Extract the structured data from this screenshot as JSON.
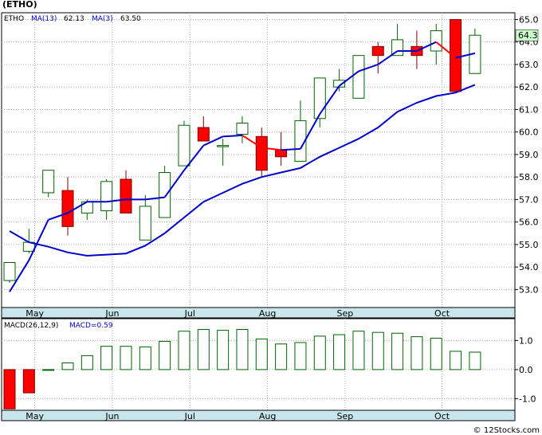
{
  "page_title": "(ETHO)",
  "watermark": "© 12Stocks.com",
  "colors": {
    "background": "#ffffff",
    "grid": "#a8a8a8",
    "axis_strip": "#c8e6ec",
    "up_candle": "#006400",
    "down_candle": "#ff0000",
    "ma_fast": "#ff0000",
    "ma_fast_alt": "#0000cc",
    "ma_slow": "#0000cc",
    "macd_bar": "#006400",
    "macd_neg": "#ff0000",
    "price_tag": "#ccffcc"
  },
  "chart_data": [
    {
      "type": "candlestick",
      "panel": "price",
      "legend": {
        "symbol": "ETHO",
        "ma13_label": "MA(13)",
        "ma13_value": "62.13",
        "ma3_label": "MA(3)",
        "ma3_value": "63.50"
      },
      "last_price_label": "64.3",
      "ylim": [
        52.2,
        65.3
      ],
      "yticks": [
        "53.0",
        "54.0",
        "55.0",
        "56.0",
        "57.0",
        "58.0",
        "59.0",
        "60.0",
        "61.0",
        "62.0",
        "63.0",
        "64.0",
        "65.0"
      ],
      "xticks": [
        "May",
        "Jun",
        "Jul",
        "Aug",
        "Sep",
        "Oct"
      ],
      "xtick_index": [
        1.3,
        5.3,
        9.3,
        13.3,
        17.3,
        22.3
      ],
      "candles": [
        {
          "o": 53.4,
          "h": 54.2,
          "l": 53.3,
          "c": 54.2
        },
        {
          "o": 54.7,
          "h": 55.7,
          "l": 54.6,
          "c": 55.1
        },
        {
          "o": 57.3,
          "h": 58.3,
          "l": 57.1,
          "c": 58.3
        },
        {
          "o": 57.4,
          "h": 58.0,
          "l": 55.4,
          "c": 55.8
        },
        {
          "o": 56.4,
          "h": 57.0,
          "l": 56.1,
          "c": 56.9
        },
        {
          "o": 56.5,
          "h": 57.9,
          "l": 56.1,
          "c": 57.8
        },
        {
          "o": 57.9,
          "h": 58.3,
          "l": 56.4,
          "c": 56.4
        },
        {
          "o": 55.2,
          "h": 57.2,
          "l": 55.2,
          "c": 56.7
        },
        {
          "o": 56.2,
          "h": 58.5,
          "l": 56.2,
          "c": 58.2
        },
        {
          "o": 58.5,
          "h": 60.5,
          "l": 58.5,
          "c": 60.3
        },
        {
          "o": 60.2,
          "h": 60.7,
          "l": 59.6,
          "c": 59.6
        },
        {
          "o": 59.4,
          "h": 59.7,
          "l": 58.5,
          "c": 59.4
        },
        {
          "o": 59.9,
          "h": 60.7,
          "l": 59.5,
          "c": 60.4
        },
        {
          "o": 59.8,
          "h": 60.2,
          "l": 58.0,
          "c": 58.3
        },
        {
          "o": 59.2,
          "h": 60.0,
          "l": 58.5,
          "c": 58.9
        },
        {
          "o": 58.7,
          "h": 61.4,
          "l": 58.7,
          "c": 60.5
        },
        {
          "o": 60.6,
          "h": 62.4,
          "l": 60.2,
          "c": 62.4
        },
        {
          "o": 62.0,
          "h": 62.8,
          "l": 61.8,
          "c": 62.3
        },
        {
          "o": 61.5,
          "h": 63.4,
          "l": 61.5,
          "c": 63.4
        },
        {
          "o": 63.8,
          "h": 64.0,
          "l": 62.6,
          "c": 63.4
        },
        {
          "o": 63.4,
          "h": 64.8,
          "l": 63.4,
          "c": 64.1
        },
        {
          "o": 63.8,
          "h": 64.5,
          "l": 62.8,
          "c": 63.4
        },
        {
          "o": 63.6,
          "h": 64.8,
          "l": 63.0,
          "c": 64.5
        },
        {
          "o": 65.0,
          "h": 65.0,
          "l": 61.8,
          "c": 61.8
        },
        {
          "o": 62.6,
          "h": 64.6,
          "l": 62.6,
          "c": 64.3
        }
      ],
      "series": [
        {
          "name": "MA(3)",
          "color_key": "ma_fast",
          "x": [
            0,
            1,
            2,
            3,
            4,
            5,
            6,
            7,
            8,
            9,
            10,
            11,
            12,
            13,
            14,
            15,
            16,
            17,
            18,
            19,
            20,
            21,
            22,
            23,
            24
          ],
          "values": [
            55.6,
            55.2,
            54.9,
            54.6,
            54.5,
            54.55,
            54.6,
            54.7,
            55.0,
            55.8,
            56.5,
            57.2,
            57.7,
            58.2,
            58.6,
            59.2,
            60.1,
            60.9,
            61.6,
            62.3,
            62.8,
            63.2,
            63.4,
            63.2,
            63.5
          ],
          "seg": [
            [
              0,
              0
            ],
            [
              0,
              3,
              4,
              6,
              9,
              10,
              11,
              12,
              14,
              15,
              16,
              17,
              19,
              20,
              21,
              22,
              23
            ],
            []
          ]
        },
        {
          "name": "MA(13)",
          "color_key": "ma_slow",
          "x": [
            0,
            1,
            2,
            3,
            4,
            5,
            6,
            7,
            8,
            9,
            10,
            11,
            12,
            13,
            14,
            15,
            16,
            17,
            18,
            19,
            20,
            21,
            22,
            23,
            24
          ],
          "values": [
            52.9,
            54.3,
            56.1,
            56.4,
            56.9,
            56.9,
            57.0,
            57.0,
            57.1,
            58.3,
            59.4,
            59.8,
            59.85,
            59.3,
            59.2,
            59.25,
            60.8,
            62.05,
            62.7,
            63.0,
            63.6,
            63.6,
            64.0,
            63.3,
            63.5
          ]
        }
      ],
      "ma13_values": [
        55.6,
        55.1,
        54.9,
        54.65,
        54.5,
        54.55,
        54.6,
        54.95,
        55.5,
        56.2,
        56.9,
        57.3,
        57.7,
        58.0,
        58.2,
        58.4,
        58.9,
        59.3,
        59.7,
        60.2,
        60.9,
        61.3,
        61.6,
        61.75,
        62.1
      ]
    },
    {
      "type": "bar",
      "panel": "macd",
      "legend": {
        "label": "MACD(26,12,9)",
        "value_label": "MACD=0.59"
      },
      "ylim": [
        -1.4,
        1.75
      ],
      "yticks": [
        "1.0",
        "0.0",
        "-1.0"
      ],
      "xticks": [
        "May",
        "Jun",
        "Jul",
        "Aug",
        "Sep",
        "Oct"
      ],
      "values": [
        -1.35,
        -0.8,
        0.0,
        0.23,
        0.48,
        0.8,
        0.8,
        0.78,
        0.97,
        1.32,
        1.38,
        1.35,
        1.38,
        1.05,
        0.88,
        0.93,
        1.15,
        1.2,
        1.32,
        1.28,
        1.25,
        1.13,
        1.08,
        0.63,
        0.6
      ]
    }
  ]
}
